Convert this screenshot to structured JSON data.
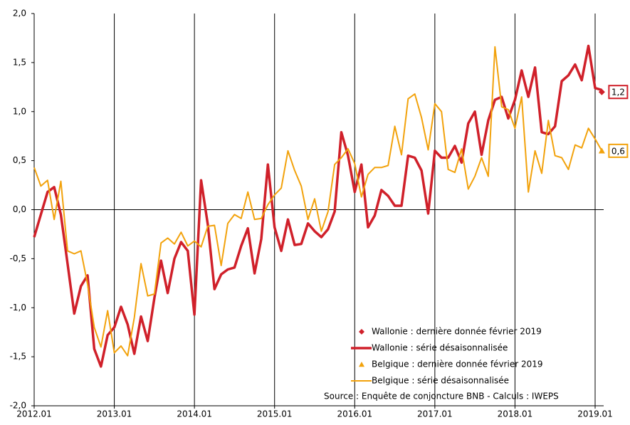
{
  "chart_data": {
    "type": "line",
    "categories": [
      "2012.01",
      null,
      null,
      null,
      null,
      null,
      null,
      null,
      null,
      null,
      null,
      null,
      "2013.01",
      null,
      null,
      null,
      null,
      null,
      null,
      null,
      null,
      null,
      null,
      null,
      "2014.01",
      null,
      null,
      null,
      null,
      null,
      null,
      null,
      null,
      null,
      null,
      null,
      "2015.01",
      null,
      null,
      null,
      null,
      null,
      null,
      null,
      null,
      null,
      null,
      null,
      "2016.01",
      null,
      null,
      null,
      null,
      null,
      null,
      null,
      null,
      null,
      null,
      null,
      "2017.01",
      null,
      null,
      null,
      null,
      null,
      null,
      null,
      null,
      null,
      null,
      null,
      "2018.01",
      null,
      null,
      null,
      null,
      null,
      null,
      null,
      null,
      null,
      null,
      null,
      "2019.01",
      null
    ],
    "series": [
      {
        "name": "Wallonie : dernière donnée février 2019",
        "color": "#d0202a",
        "marker": "diamond",
        "values": [
          null,
          null,
          null,
          null,
          null,
          null,
          null,
          null,
          null,
          null,
          null,
          null,
          null,
          null,
          null,
          null,
          null,
          null,
          null,
          null,
          null,
          null,
          null,
          null,
          null,
          null,
          null,
          null,
          null,
          null,
          null,
          null,
          null,
          null,
          null,
          null,
          null,
          null,
          null,
          null,
          null,
          null,
          null,
          null,
          null,
          null,
          null,
          null,
          null,
          null,
          null,
          null,
          null,
          null,
          null,
          null,
          null,
          null,
          null,
          null,
          null,
          null,
          null,
          null,
          null,
          null,
          null,
          null,
          null,
          null,
          null,
          null,
          null,
          null,
          null,
          null,
          null,
          null,
          null,
          null,
          null,
          null,
          null,
          null,
          null,
          1.2
        ],
        "value_labels": [
          null,
          null,
          null,
          null,
          null,
          null,
          null,
          null,
          null,
          null,
          null,
          null,
          null,
          null,
          null,
          null,
          null,
          null,
          null,
          null,
          null,
          null,
          null,
          null,
          null,
          null,
          null,
          null,
          null,
          null,
          null,
          null,
          null,
          null,
          null,
          null,
          null,
          null,
          null,
          null,
          null,
          null,
          null,
          null,
          null,
          null,
          null,
          null,
          null,
          null,
          null,
          null,
          null,
          null,
          null,
          null,
          null,
          null,
          null,
          null,
          null,
          null,
          null,
          null,
          null,
          null,
          null,
          null,
          null,
          null,
          null,
          null,
          null,
          null,
          null,
          null,
          null,
          null,
          null,
          null,
          null,
          null,
          null,
          null,
          null,
          "1,2"
        ]
      },
      {
        "name": "Wallonie : série désaisonnalisée",
        "color": "#d0202a",
        "width": 3.5,
        "values": [
          -0.28,
          -0.05,
          0.18,
          0.23,
          -0.05,
          -0.55,
          -1.06,
          -0.78,
          -0.67,
          -1.42,
          -1.6,
          -1.28,
          -1.2,
          -0.99,
          -1.17,
          -1.47,
          -1.09,
          -1.34,
          -0.9,
          -0.52,
          -0.85,
          -0.5,
          -0.33,
          -0.42,
          -1.07,
          0.3,
          -0.15,
          -0.81,
          -0.66,
          -0.61,
          -0.59,
          -0.37,
          -0.19,
          -0.65,
          -0.3,
          0.46,
          -0.18,
          -0.42,
          -0.1,
          -0.36,
          -0.35,
          -0.14,
          -0.22,
          -0.28,
          -0.2,
          -0.02,
          0.79,
          0.55,
          0.18,
          0.46,
          -0.18,
          -0.06,
          0.2,
          0.14,
          0.04,
          0.04,
          0.55,
          0.53,
          0.4,
          -0.04,
          0.6,
          0.53,
          0.53,
          0.65,
          0.48,
          0.88,
          1.0,
          0.56,
          0.91,
          1.12,
          1.15,
          0.93,
          1.12,
          1.42,
          1.15,
          1.45,
          0.79,
          0.77,
          0.85,
          1.31,
          1.37,
          1.48,
          1.32,
          1.67,
          1.24,
          1.22
        ]
      },
      {
        "name": "Belgique : dernière donnée février 2019",
        "color": "#f2a20c",
        "marker": "triangle",
        "values": [
          null,
          null,
          null,
          null,
          null,
          null,
          null,
          null,
          null,
          null,
          null,
          null,
          null,
          null,
          null,
          null,
          null,
          null,
          null,
          null,
          null,
          null,
          null,
          null,
          null,
          null,
          null,
          null,
          null,
          null,
          null,
          null,
          null,
          null,
          null,
          null,
          null,
          null,
          null,
          null,
          null,
          null,
          null,
          null,
          null,
          null,
          null,
          null,
          null,
          null,
          null,
          null,
          null,
          null,
          null,
          null,
          null,
          null,
          null,
          null,
          null,
          null,
          null,
          null,
          null,
          null,
          null,
          null,
          null,
          null,
          null,
          null,
          null,
          null,
          null,
          null,
          null,
          null,
          null,
          null,
          null,
          null,
          null,
          null,
          null,
          0.6
        ],
        "value_labels": [
          null,
          null,
          null,
          null,
          null,
          null,
          null,
          null,
          null,
          null,
          null,
          null,
          null,
          null,
          null,
          null,
          null,
          null,
          null,
          null,
          null,
          null,
          null,
          null,
          null,
          null,
          null,
          null,
          null,
          null,
          null,
          null,
          null,
          null,
          null,
          null,
          null,
          null,
          null,
          null,
          null,
          null,
          null,
          null,
          null,
          null,
          null,
          null,
          null,
          null,
          null,
          null,
          null,
          null,
          null,
          null,
          null,
          null,
          null,
          null,
          null,
          null,
          null,
          null,
          null,
          null,
          null,
          null,
          null,
          null,
          null,
          null,
          null,
          null,
          null,
          null,
          null,
          null,
          null,
          null,
          null,
          null,
          null,
          null,
          null,
          "0,6"
        ]
      },
      {
        "name": "Belgique : série désaisonnalisée",
        "color": "#f2a20c",
        "width": 2,
        "values": [
          0.43,
          0.24,
          0.3,
          -0.1,
          0.29,
          -0.42,
          -0.45,
          -0.42,
          -0.76,
          -1.2,
          -1.4,
          -1.03,
          -1.46,
          -1.39,
          -1.49,
          -1.1,
          -0.55,
          -0.88,
          -0.86,
          -0.34,
          -0.29,
          -0.35,
          -0.23,
          -0.37,
          -0.32,
          -0.38,
          -0.17,
          -0.16,
          -0.57,
          -0.14,
          -0.05,
          -0.09,
          0.18,
          -0.1,
          -0.09,
          0.05,
          0.15,
          0.22,
          0.6,
          0.4,
          0.24,
          -0.1,
          0.11,
          -0.22,
          -0.02,
          0.46,
          0.53,
          0.62,
          0.47,
          0.13,
          0.36,
          0.43,
          0.43,
          0.45,
          0.85,
          0.56,
          1.13,
          1.18,
          0.94,
          0.61,
          1.08,
          1.0,
          0.41,
          0.38,
          0.62,
          0.21,
          0.34,
          0.53,
          0.34,
          1.66,
          1.05,
          1.02,
          0.83,
          1.15,
          0.18,
          0.6,
          0.37,
          0.91,
          0.55,
          0.53,
          0.41,
          0.66,
          0.63,
          0.83,
          0.72,
          0.6
        ]
      }
    ],
    "ylim": [
      -2,
      2
    ],
    "yticks": [
      {
        "value": -2,
        "label": "-2,0"
      },
      {
        "value": -1.5,
        "label": "-1,5"
      },
      {
        "value": -1,
        "label": "-1,0"
      },
      {
        "value": -0.5,
        "label": "-0,5"
      },
      {
        "value": 0,
        "label": "0,0"
      },
      {
        "value": 0.5,
        "label": "0,5"
      },
      {
        "value": 1,
        "label": "1,0"
      },
      {
        "value": 1.5,
        "label": "1,5"
      },
      {
        "value": 2,
        "label": "2,0"
      }
    ],
    "source": "Source : Enquête de conjoncture BNB - Calculs : IWEPS"
  }
}
